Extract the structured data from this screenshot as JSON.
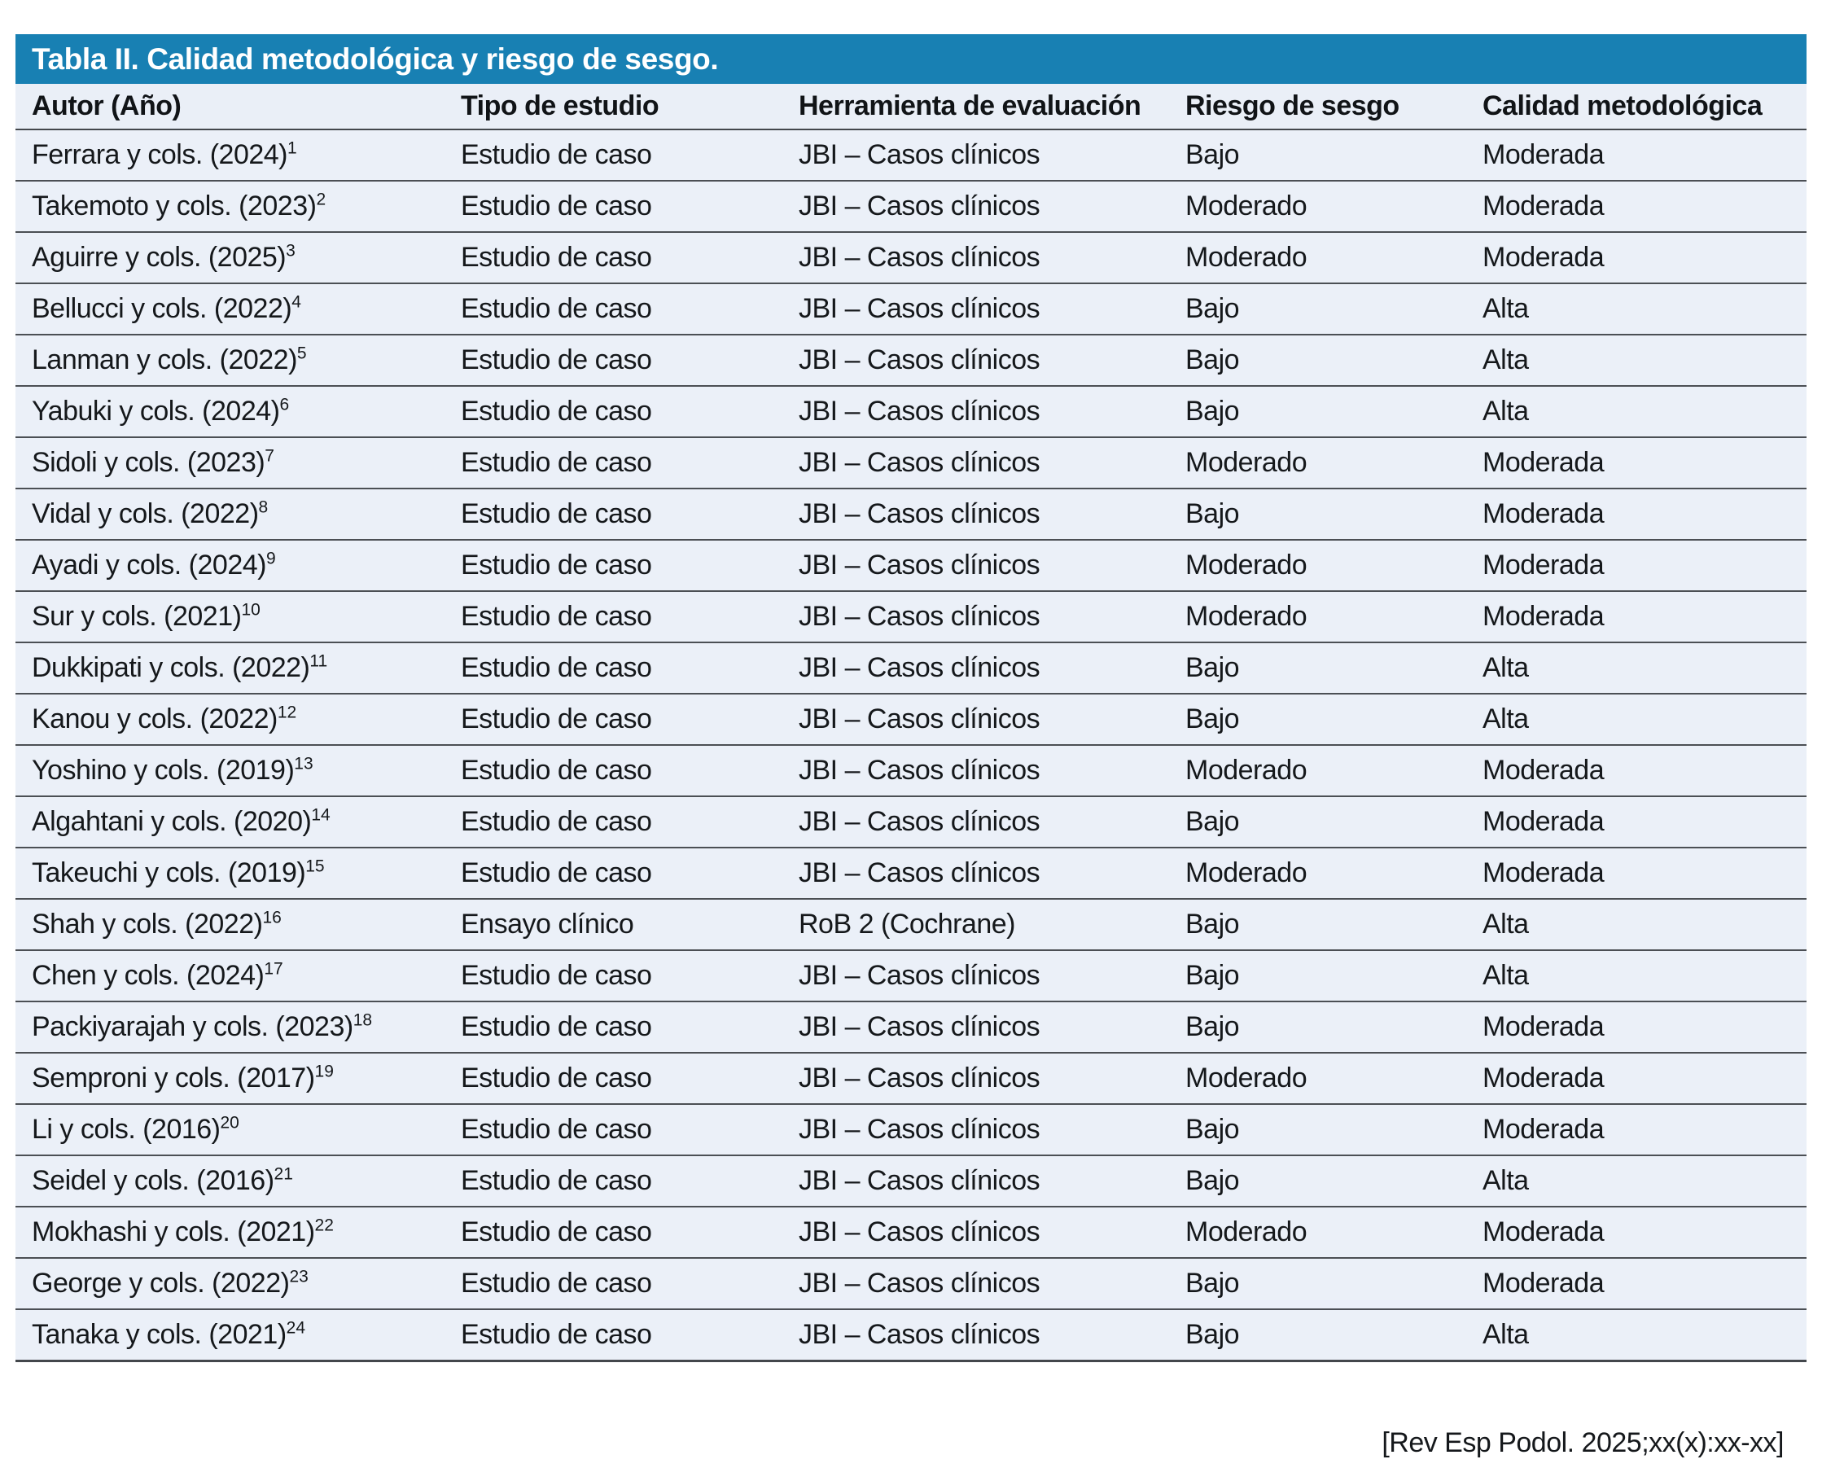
{
  "table": {
    "title": "Tabla II. Calidad metodológica y riesgo de sesgo.",
    "columns": [
      "Autor (Año)",
      "Tipo de estudio",
      "Herramienta de evaluación",
      "Riesgo de sesgo",
      "Calidad metodológica"
    ],
    "rows": [
      {
        "autor": "Ferrara y cols. (2024)",
        "ref": "1",
        "tipo": "Estudio de caso",
        "herramienta": "JBI – Casos clínicos",
        "riesgo": "Bajo",
        "calidad": "Moderada"
      },
      {
        "autor": "Takemoto y cols. (2023)",
        "ref": "2",
        "tipo": "Estudio de caso",
        "herramienta": "JBI – Casos clínicos",
        "riesgo": "Moderado",
        "calidad": "Moderada"
      },
      {
        "autor": "Aguirre y cols. (2025)",
        "ref": "3",
        "tipo": "Estudio de caso",
        "herramienta": "JBI – Casos clínicos",
        "riesgo": "Moderado",
        "calidad": "Moderada"
      },
      {
        "autor": "Bellucci y cols. (2022)",
        "ref": "4",
        "tipo": "Estudio de caso",
        "herramienta": "JBI – Casos clínicos",
        "riesgo": "Bajo",
        "calidad": "Alta"
      },
      {
        "autor": "Lanman y cols. (2022)",
        "ref": "5",
        "tipo": "Estudio de caso",
        "herramienta": "JBI – Casos clínicos",
        "riesgo": "Bajo",
        "calidad": "Alta"
      },
      {
        "autor": "Yabuki y cols. (2024)",
        "ref": "6",
        "tipo": "Estudio de caso",
        "herramienta": "JBI – Casos clínicos",
        "riesgo": "Bajo",
        "calidad": "Alta"
      },
      {
        "autor": "Sidoli y cols. (2023)",
        "ref": "7",
        "tipo": "Estudio de caso",
        "herramienta": "JBI – Casos clínicos",
        "riesgo": "Moderado",
        "calidad": "Moderada"
      },
      {
        "autor": "Vidal y cols. (2022)",
        "ref": "8",
        "tipo": "Estudio de caso",
        "herramienta": "JBI – Casos clínicos",
        "riesgo": "Bajo",
        "calidad": "Moderada"
      },
      {
        "autor": "Ayadi y cols. (2024)",
        "ref": "9",
        "tipo": "Estudio de caso",
        "herramienta": "JBI – Casos clínicos",
        "riesgo": "Moderado",
        "calidad": "Moderada"
      },
      {
        "autor": "Sur y cols. (2021)",
        "ref": "10",
        "tipo": "Estudio de caso",
        "herramienta": "JBI – Casos clínicos",
        "riesgo": "Moderado",
        "calidad": "Moderada"
      },
      {
        "autor": "Dukkipati y cols. (2022)",
        "ref": "11",
        "tipo": "Estudio de caso",
        "herramienta": "JBI – Casos clínicos",
        "riesgo": "Bajo",
        "calidad": "Alta"
      },
      {
        "autor": "Kanou y cols. (2022)",
        "ref": "12",
        "tipo": "Estudio de caso",
        "herramienta": "JBI – Casos clínicos",
        "riesgo": "Bajo",
        "calidad": "Alta"
      },
      {
        "autor": "Yoshino y cols. (2019)",
        "ref": "13",
        "tipo": "Estudio de caso",
        "herramienta": "JBI – Casos clínicos",
        "riesgo": "Moderado",
        "calidad": "Moderada"
      },
      {
        "autor": "Algahtani y cols. (2020)",
        "ref": "14",
        "tipo": "Estudio de caso",
        "herramienta": "JBI – Casos clínicos",
        "riesgo": "Bajo",
        "calidad": "Moderada"
      },
      {
        "autor": "Takeuchi y cols. (2019)",
        "ref": "15",
        "tipo": "Estudio de caso",
        "herramienta": "JBI – Casos clínicos",
        "riesgo": "Moderado",
        "calidad": "Moderada"
      },
      {
        "autor": "Shah y cols. (2022)",
        "ref": "16",
        "tipo": "Ensayo clínico",
        "herramienta": "RoB 2 (Cochrane)",
        "riesgo": "Bajo",
        "calidad": "Alta"
      },
      {
        "autor": "Chen y cols. (2024)",
        "ref": "17",
        "tipo": "Estudio de caso",
        "herramienta": "JBI – Casos clínicos",
        "riesgo": "Bajo",
        "calidad": "Alta"
      },
      {
        "autor": "Packiyarajah y cols. (2023)",
        "ref": "18",
        "tipo": "Estudio de caso",
        "herramienta": "JBI – Casos clínicos",
        "riesgo": "Bajo",
        "calidad": "Moderada"
      },
      {
        "autor": "Semproni y cols. (2017)",
        "ref": "19",
        "tipo": "Estudio de caso",
        "herramienta": "JBI – Casos clínicos",
        "riesgo": "Moderado",
        "calidad": "Moderada"
      },
      {
        "autor": "Li y cols. (2016)",
        "ref": "20",
        "tipo": "Estudio de caso",
        "herramienta": "JBI – Casos clínicos",
        "riesgo": "Bajo",
        "calidad": "Moderada"
      },
      {
        "autor": "Seidel y cols. (2016)",
        "ref": "21",
        "tipo": "Estudio de caso",
        "herramienta": "JBI – Casos clínicos",
        "riesgo": "Bajo",
        "calidad": "Alta"
      },
      {
        "autor": "Mokhashi y cols. (2021)",
        "ref": "22",
        "tipo": "Estudio de caso",
        "herramienta": "JBI – Casos clínicos",
        "riesgo": "Moderado",
        "calidad": "Moderada"
      },
      {
        "autor": "George y cols. (2022)",
        "ref": "23",
        "tipo": "Estudio de caso",
        "herramienta": "JBI – Casos clínicos",
        "riesgo": "Bajo",
        "calidad": "Moderada"
      },
      {
        "autor": "Tanaka y cols. (2021)",
        "ref": "24",
        "tipo": "Estudio de caso",
        "herramienta": "JBI – Casos clínicos",
        "riesgo": "Bajo",
        "calidad": "Alta"
      }
    ]
  },
  "footer": {
    "citation": "[Rev Esp Podol. 2025;xx(x):xx-xx]"
  },
  "colors": {
    "title_bar_blue": "#1880B3",
    "row_background": "#EBF0F8",
    "row_border": "#4B4F54",
    "title_text": "#FFFFFF"
  }
}
